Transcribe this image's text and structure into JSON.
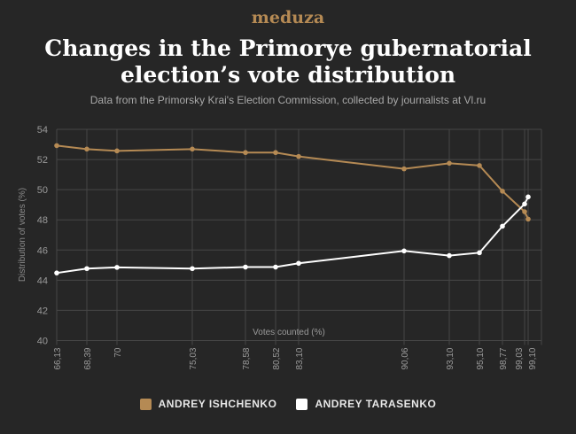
{
  "header": {
    "logo": "meduza",
    "title_line1": "Changes in the Primorye gubernatorial",
    "title_line2": "election’s vote distribution",
    "subtitle": "Data from the Primorsky Krai's Election Commission, collected by journalists at Vl.ru"
  },
  "chart_data": {
    "type": "line",
    "title": "Changes in the Primorye gubernatorial election’s vote distribution",
    "xlabel": "Votes counted (%)",
    "ylabel": "Distribution of votes (%)",
    "ylim": [
      40,
      54
    ],
    "yticks": [
      "40",
      "42",
      "44",
      "46",
      "48",
      "50",
      "52",
      "54"
    ],
    "categories": [
      "66,13",
      "68,39",
      "70",
      "75,03",
      "78,58",
      "80,52",
      "83,10",
      "90,06",
      "93,10",
      "95,10",
      "98,77",
      "99,03",
      "99,10"
    ],
    "grid": true,
    "legend_position": "bottom",
    "series": [
      {
        "name": "ANDREY ISHCHENKO",
        "color": "#b58a54",
        "values": [
          52.92,
          52.69,
          52.57,
          52.69,
          52.46,
          52.46,
          52.2,
          51.38,
          51.75,
          51.6,
          49.9,
          48.54,
          48.05
        ]
      },
      {
        "name": "ANDREY TARASENKO",
        "color": "#ffffff",
        "values": [
          44.48,
          44.77,
          44.85,
          44.77,
          44.87,
          44.87,
          45.12,
          45.94,
          45.63,
          45.82,
          47.58,
          49.05,
          49.52
        ]
      }
    ]
  }
}
